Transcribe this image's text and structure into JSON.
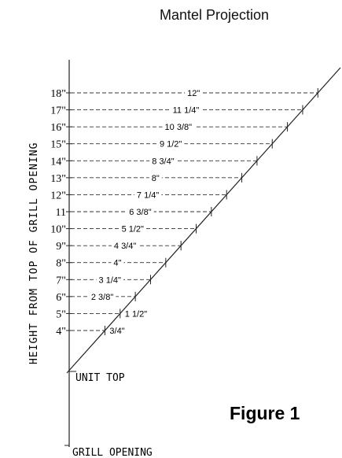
{
  "title": "Mantel Projection",
  "figure_label": "Figure 1",
  "axis_label": "HEIGHT FROM TOP OF GRILL OPENING",
  "unit_top_label": "UNIT TOP",
  "grill_opening_label": "GRILL OPENING",
  "rows": [
    {
      "height": "18\"",
      "projection": "12\""
    },
    {
      "height": "17\"",
      "projection": "11 1/4\""
    },
    {
      "height": "16\"",
      "projection": "10 3/8\""
    },
    {
      "height": "15\"",
      "projection": "9 1/2\""
    },
    {
      "height": "14\"",
      "projection": "8 3/4\""
    },
    {
      "height": "13\"",
      "projection": "8\""
    },
    {
      "height": "12\"",
      "projection": "7 1/4\""
    },
    {
      "height": "11",
      "projection": "6 3/8\""
    },
    {
      "height": "10\"",
      "projection": "5 1/2\""
    },
    {
      "height": "9\"",
      "projection": "4 3/4\""
    },
    {
      "height": "8\"",
      "projection": "4\""
    },
    {
      "height": "7\"",
      "projection": "3 1/4\""
    },
    {
      "height": "6\"",
      "projection": "2 3/8\""
    },
    {
      "height": "5\"",
      "projection": "1 1/2\""
    },
    {
      "height": "4\"",
      "projection": "3/4\""
    }
  ]
}
